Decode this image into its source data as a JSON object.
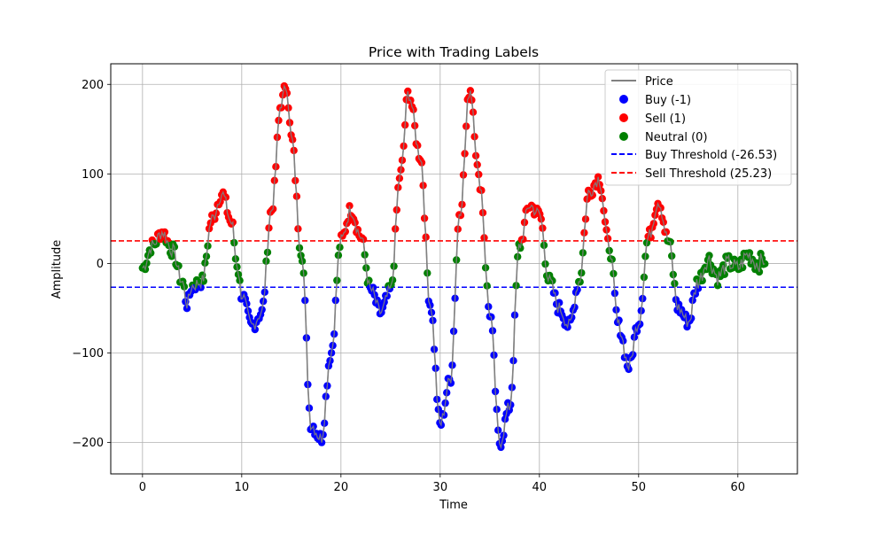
{
  "chart_data": {
    "type": "scatter",
    "title": "Price with Trading Labels",
    "xlabel": "Time",
    "ylabel": "Amplitude",
    "xlim": [
      -3.2,
      66.0
    ],
    "ylim": [
      -235,
      223
    ],
    "x_ticks": [
      0,
      10,
      20,
      30,
      40,
      50,
      60
    ],
    "y_ticks": [
      -200,
      -100,
      0,
      100,
      200
    ],
    "x_tick_labels": [
      "0",
      "10",
      "20",
      "30",
      "40",
      "50",
      "60"
    ],
    "y_tick_labels": [
      "−200",
      "−100",
      "0",
      "100",
      "200"
    ],
    "grid": true,
    "legend_position": "upper right",
    "colors": {
      "price": "#808080",
      "buy": "#0000ff",
      "sell": "#ff0000",
      "neutral": "#008000",
      "grid": "#b0b0b0"
    },
    "thresholds": {
      "buy": {
        "label": "Buy Threshold (-26.53)",
        "value": -26.53,
        "color": "#0000ff"
      },
      "sell": {
        "label": "Sell Threshold (25.23)",
        "value": 25.23,
        "color": "#ff0000"
      }
    },
    "legend": {
      "price": "Price",
      "buy": "Buy (-1)",
      "sell": "Sell (1)",
      "neutral": "Neutral (0)",
      "buy_threshold": "Buy Threshold (-26.53)",
      "sell_threshold": "Sell Threshold (25.23)"
    },
    "series": [
      {
        "name": "Price",
        "x": [
          0,
          1,
          2,
          3,
          4,
          4.5,
          5,
          6,
          7,
          8,
          9,
          9.5,
          10,
          11,
          12,
          13,
          14,
          14.5,
          15,
          16,
          17,
          18,
          19,
          20,
          21,
          22,
          23,
          24,
          25,
          26,
          26.8,
          28,
          29,
          30,
          31,
          32,
          33,
          34,
          35,
          36,
          37,
          38,
          39,
          40,
          41,
          42,
          43,
          44,
          45,
          46,
          47,
          48,
          49,
          50,
          51,
          52,
          53,
          54,
          55,
          56,
          57,
          58,
          59,
          60,
          61,
          62,
          62.8
        ],
        "y": [
          -5,
          20,
          35,
          15,
          -20,
          -45,
          -25,
          -20,
          50,
          78,
          45,
          0,
          -35,
          -70,
          -55,
          60,
          180,
          200,
          140,
          15,
          -180,
          -195,
          -100,
          25,
          60,
          30,
          -30,
          -55,
          -30,
          100,
          190,
          120,
          -45,
          -180,
          -130,
          60,
          195,
          90,
          -55,
          -200,
          -160,
          20,
          65,
          55,
          -20,
          -50,
          -70,
          -20,
          80,
          95,
          20,
          -70,
          -115,
          -65,
          30,
          70,
          25,
          -50,
          -65,
          -20,
          5,
          -15,
          0,
          -5,
          10,
          0,
          5
        ]
      }
    ]
  }
}
